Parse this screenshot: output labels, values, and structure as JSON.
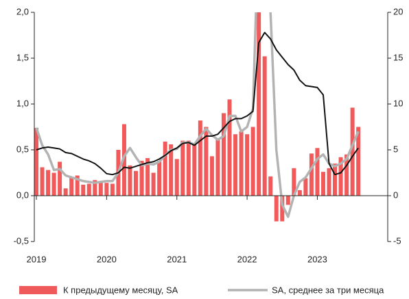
{
  "chart_data": {
    "type": "bar_line",
    "categories": [
      "2019",
      null,
      null,
      null,
      null,
      null,
      null,
      null,
      null,
      null,
      null,
      null,
      "2020",
      null,
      null,
      null,
      null,
      null,
      null,
      null,
      null,
      null,
      null,
      null,
      "2021",
      null,
      null,
      null,
      null,
      null,
      null,
      null,
      null,
      null,
      null,
      null,
      "2022",
      null,
      null,
      null,
      null,
      null,
      null,
      null,
      null,
      null,
      null,
      null,
      "2023",
      null,
      null,
      null,
      null,
      null,
      null,
      null
    ],
    "series": [
      {
        "name": "К предыдущему месяцу, SA",
        "color": "#f05a5a",
        "kind": "bar",
        "axis": "y",
        "values": [
          0.74,
          0.31,
          0.28,
          0.25,
          0.37,
          0.08,
          0.2,
          0.22,
          0.12,
          0.13,
          0.17,
          0.15,
          0.14,
          0.13,
          0.5,
          0.78,
          0.33,
          0.27,
          0.38,
          0.41,
          0.25,
          0.38,
          0.59,
          0.56,
          0.4,
          0.6,
          0.6,
          0.56,
          0.82,
          0.75,
          0.43,
          0.62,
          0.9,
          1.05,
          0.67,
          0.7,
          0.67,
          0.75,
          2.0,
          1.52,
          0.21,
          -0.28,
          -0.28,
          -0.1,
          0.3,
          0.06,
          0.19,
          0.46,
          0.52,
          0.26,
          0.3,
          0.35,
          0.42,
          0.45,
          0.96,
          0.75
        ]
      },
      {
        "name": "SA, среднее за три месяца",
        "color": "#b3b3b3",
        "kind": "line",
        "axis": "y2",
        "values": [
          7.4,
          5.5,
          4.5,
          2.8,
          2.9,
          2.2,
          2.0,
          1.8,
          1.6,
          1.5,
          1.4,
          1.5,
          1.6,
          1.6,
          2.5,
          4.3,
          5.2,
          4.2,
          3.3,
          3.5,
          3.4,
          3.7,
          4.4,
          5.0,
          5.1,
          5.8,
          5.8,
          5.6,
          6.5,
          7.3,
          6.6,
          6.1,
          6.5,
          8.7,
          8.7,
          7.0,
          7.5,
          9.5,
          30,
          35,
          20,
          5,
          -1.0,
          -2.3,
          0,
          1.5,
          2.0,
          3.0,
          4.0,
          4.5,
          3.5,
          3.2,
          3.5,
          4.0,
          5.5,
          7.0
        ]
      },
      {
        "color": "#111111",
        "kind": "line",
        "axis": "y2",
        "values": [
          5.0,
          5.2,
          5.3,
          5.2,
          5.1,
          4.7,
          4.6,
          4.3,
          4.0,
          3.8,
          3.5,
          3.0,
          2.4,
          2.3,
          2.5,
          3.1,
          3.0,
          3.2,
          3.4,
          3.6,
          3.7,
          4.0,
          4.4,
          4.9,
          5.2,
          5.7,
          5.8,
          5.5,
          6.0,
          6.5,
          6.5,
          6.7,
          7.4,
          8.1,
          8.4,
          8.4,
          8.7,
          9.2,
          16.7,
          17.8,
          17.1,
          15.9,
          15.1,
          14.3,
          13.7,
          12.6,
          12.0,
          11.9,
          11.8,
          11.0,
          3.5,
          2.3,
          2.5,
          3.3,
          4.3,
          5.2
        ]
      }
    ],
    "ylim": [
      -0.5,
      2.0
    ],
    "yticks": [
      {
        "value": -0.5,
        "label": "-0,5"
      },
      {
        "value": 0,
        "label": "0,0"
      },
      {
        "value": 0.5,
        "label": "0,5"
      },
      {
        "value": 1.0,
        "label": "1,0"
      },
      {
        "value": 1.5,
        "label": "1,5"
      },
      {
        "value": 2.0,
        "label": "2,0"
      }
    ],
    "y2lim": [
      -5,
      20
    ],
    "y2ticks": [
      -5,
      0,
      5,
      10,
      15,
      20
    ],
    "grid": false
  }
}
